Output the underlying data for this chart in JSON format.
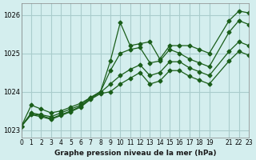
{
  "bg_color": "#d4eeee",
  "grid_color": "#aacccc",
  "line_color": "#1a5e1a",
  "title": "Graphe pression niveau de la mer (hPa)",
  "xlim": [
    0,
    23
  ],
  "ylim": [
    1022.8,
    1026.3
  ],
  "yticks": [
    1023,
    1024,
    1025,
    1026
  ],
  "xticks": [
    0,
    1,
    2,
    3,
    4,
    5,
    6,
    7,
    8,
    9,
    10,
    11,
    12,
    13,
    14,
    15,
    16,
    17,
    18,
    19,
    21,
    22,
    23
  ],
  "series": [
    {
      "x": [
        0,
        1,
        2,
        3,
        4,
        5,
        6,
        7,
        8,
        9,
        10,
        11,
        12,
        13,
        14,
        15,
        16,
        17,
        18,
        19,
        21,
        22,
        23
      ],
      "y": [
        1023.1,
        1023.65,
        1023.55,
        1023.45,
        1023.5,
        1023.6,
        1023.7,
        1023.85,
        1024.0,
        1024.8,
        1025.8,
        1025.2,
        1025.25,
        1025.3,
        1024.85,
        1025.2,
        1025.2,
        1025.2,
        1025.1,
        1025.0,
        1025.85,
        1026.1,
        1026.05
      ],
      "marker": "D",
      "markersize": 2.5
    },
    {
      "x": [
        0,
        1,
        2,
        3,
        4,
        5,
        6,
        7,
        8,
        9,
        10,
        11,
        12,
        13,
        14,
        15,
        16,
        17,
        18,
        19,
        21,
        22,
        23
      ],
      "y": [
        1023.1,
        1023.45,
        1023.4,
        1023.35,
        1023.45,
        1023.55,
        1023.65,
        1023.85,
        1024.0,
        1024.55,
        1025.0,
        1025.1,
        1025.15,
        1024.75,
        1024.8,
        1025.1,
        1025.0,
        1024.85,
        1024.75,
        1024.65,
        1025.55,
        1025.85,
        1025.75
      ],
      "marker": "D",
      "markersize": 2.5
    },
    {
      "x": [
        0,
        1,
        2,
        3,
        4,
        5,
        6,
        7,
        8,
        9,
        10,
        11,
        12,
        13,
        14,
        15,
        16,
        17,
        18,
        19,
        21,
        22,
        23
      ],
      "y": [
        1023.1,
        1023.42,
        1023.38,
        1023.3,
        1023.4,
        1023.5,
        1023.62,
        1023.82,
        1023.98,
        1024.2,
        1024.42,
        1024.58,
        1024.7,
        1024.42,
        1024.5,
        1024.78,
        1024.78,
        1024.62,
        1024.52,
        1024.42,
        1025.05,
        1025.3,
        1025.2
      ],
      "marker": "D",
      "markersize": 2.5
    },
    {
      "x": [
        0,
        1,
        2,
        3,
        4,
        5,
        6,
        7,
        8,
        9,
        10,
        11,
        12,
        13,
        14,
        15,
        16,
        17,
        18,
        19,
        21,
        22,
        23
      ],
      "y": [
        1023.1,
        1023.4,
        1023.35,
        1023.28,
        1023.38,
        1023.48,
        1023.6,
        1023.8,
        1023.95,
        1024.0,
        1024.2,
        1024.35,
        1024.5,
        1024.2,
        1024.28,
        1024.55,
        1024.55,
        1024.4,
        1024.3,
        1024.2,
        1024.8,
        1025.05,
        1024.95
      ],
      "marker": "D",
      "markersize": 2.5
    }
  ]
}
